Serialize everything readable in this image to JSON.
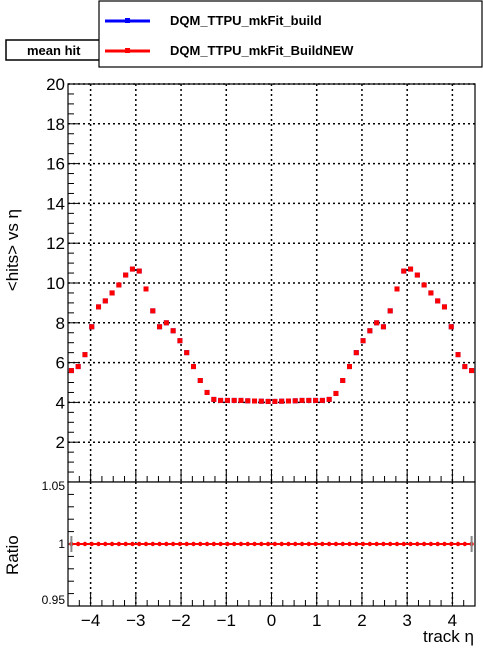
{
  "chart_data": [
    {
      "type": "scatter",
      "title": "mean hit",
      "xlabel": "",
      "ylabel": "<hits> vs η",
      "xlim": [
        -4.5,
        4.5
      ],
      "ylim": [
        0,
        20
      ],
      "grid": true,
      "legend_position": "top",
      "y_tick_labels": [
        "2",
        "4",
        "6",
        "8",
        "10",
        "12",
        "14",
        "16",
        "18",
        "20"
      ],
      "series": [
        {
          "name": "DQM_TTPU_mkFit_build",
          "color": "#0000ff",
          "x": [
            -4.425,
            -4.275,
            -4.125,
            -3.975,
            -3.825,
            -3.675,
            -3.525,
            -3.375,
            -3.225,
            -3.075,
            -2.925,
            -2.775,
            -2.625,
            -2.475,
            -2.325,
            -2.175,
            -2.025,
            -1.875,
            -1.725,
            -1.575,
            -1.425,
            -1.275,
            -1.125,
            -0.975,
            -0.825,
            -0.675,
            -0.525,
            -0.375,
            -0.225,
            -0.075,
            0.075,
            0.225,
            0.375,
            0.525,
            0.675,
            0.825,
            0.975,
            1.125,
            1.275,
            1.425,
            1.575,
            1.725,
            1.875,
            2.025,
            2.175,
            2.325,
            2.475,
            2.625,
            2.775,
            2.925,
            3.075,
            3.225,
            3.375,
            3.525,
            3.675,
            3.825,
            3.975,
            4.125,
            4.275,
            4.425
          ],
          "values": [
            5.6,
            5.8,
            6.4,
            7.8,
            8.8,
            9.1,
            9.5,
            9.9,
            10.4,
            10.7,
            10.6,
            9.7,
            8.6,
            7.8,
            8.0,
            7.6,
            7.1,
            6.5,
            5.8,
            5.1,
            4.5,
            4.15,
            4.1,
            4.1,
            4.1,
            4.1,
            4.08,
            4.07,
            4.06,
            4.05,
            4.05,
            4.06,
            4.07,
            4.08,
            4.1,
            4.1,
            4.1,
            4.1,
            4.15,
            4.45,
            5.1,
            5.8,
            6.5,
            7.1,
            7.6,
            8.0,
            7.8,
            8.6,
            9.7,
            10.6,
            10.7,
            10.4,
            9.9,
            9.5,
            9.1,
            8.8,
            7.8,
            6.4,
            5.8,
            5.6
          ]
        },
        {
          "name": "DQM_TTPU_mkFit_BuildNEW",
          "color": "#ff0000",
          "x": [
            -4.425,
            -4.275,
            -4.125,
            -3.975,
            -3.825,
            -3.675,
            -3.525,
            -3.375,
            -3.225,
            -3.075,
            -2.925,
            -2.775,
            -2.625,
            -2.475,
            -2.325,
            -2.175,
            -2.025,
            -1.875,
            -1.725,
            -1.575,
            -1.425,
            -1.275,
            -1.125,
            -0.975,
            -0.825,
            -0.675,
            -0.525,
            -0.375,
            -0.225,
            -0.075,
            0.075,
            0.225,
            0.375,
            0.525,
            0.675,
            0.825,
            0.975,
            1.125,
            1.275,
            1.425,
            1.575,
            1.725,
            1.875,
            2.025,
            2.175,
            2.325,
            2.475,
            2.625,
            2.775,
            2.925,
            3.075,
            3.225,
            3.375,
            3.525,
            3.675,
            3.825,
            3.975,
            4.125,
            4.275,
            4.425
          ],
          "values": [
            5.6,
            5.8,
            6.4,
            7.8,
            8.8,
            9.1,
            9.5,
            9.9,
            10.4,
            10.7,
            10.6,
            9.7,
            8.6,
            7.8,
            8.0,
            7.6,
            7.1,
            6.5,
            5.8,
            5.1,
            4.5,
            4.15,
            4.1,
            4.1,
            4.1,
            4.1,
            4.08,
            4.07,
            4.06,
            4.05,
            4.05,
            4.06,
            4.07,
            4.08,
            4.1,
            4.1,
            4.1,
            4.1,
            4.15,
            4.45,
            5.1,
            5.8,
            6.5,
            7.1,
            7.6,
            8.0,
            7.8,
            8.6,
            9.7,
            10.6,
            10.7,
            10.4,
            9.9,
            9.5,
            9.1,
            8.8,
            7.8,
            6.4,
            5.8,
            5.6
          ]
        }
      ]
    },
    {
      "type": "scatter",
      "title": "",
      "xlabel": "track η",
      "ylabel": "Ratio",
      "xlim": [
        -4.5,
        4.5
      ],
      "ylim": [
        0.95,
        1.05
      ],
      "grid": true,
      "x_tick_labels": [
        "−4",
        "−3",
        "−2",
        "−1",
        "0",
        "1",
        "2",
        "3",
        "4"
      ],
      "y_tick_labels": [
        "0.95",
        "1",
        "1.05"
      ],
      "series": [
        {
          "color": "#ff0000",
          "x": [
            -4.425,
            -4.275,
            -4.125,
            -3.975,
            -3.825,
            -3.675,
            -3.525,
            -3.375,
            -3.225,
            -3.075,
            -2.925,
            -2.775,
            -2.625,
            -2.475,
            -2.325,
            -2.175,
            -2.025,
            -1.875,
            -1.725,
            -1.575,
            -1.425,
            -1.275,
            -1.125,
            -0.975,
            -0.825,
            -0.675,
            -0.525,
            -0.375,
            -0.225,
            -0.075,
            0.075,
            0.225,
            0.375,
            0.525,
            0.675,
            0.825,
            0.975,
            1.125,
            1.275,
            1.425,
            1.575,
            1.725,
            1.875,
            2.025,
            2.175,
            2.325,
            2.475,
            2.625,
            2.775,
            2.925,
            3.075,
            3.225,
            3.375,
            3.525,
            3.675,
            3.825,
            3.975,
            4.125,
            4.275,
            4.425
          ],
          "values": [
            1,
            1,
            1,
            1,
            1,
            1,
            1,
            1,
            1,
            1,
            1,
            1,
            1,
            1,
            1,
            1,
            1,
            1,
            1,
            1,
            1,
            1,
            1,
            1,
            1,
            1,
            1,
            1,
            1,
            1,
            1,
            1,
            1,
            1,
            1,
            1,
            1,
            1,
            1,
            1,
            1,
            1,
            1,
            1,
            1,
            1,
            1,
            1,
            1,
            1,
            1,
            1,
            1,
            1,
            1,
            1,
            1,
            1,
            1,
            1
          ]
        }
      ]
    }
  ]
}
